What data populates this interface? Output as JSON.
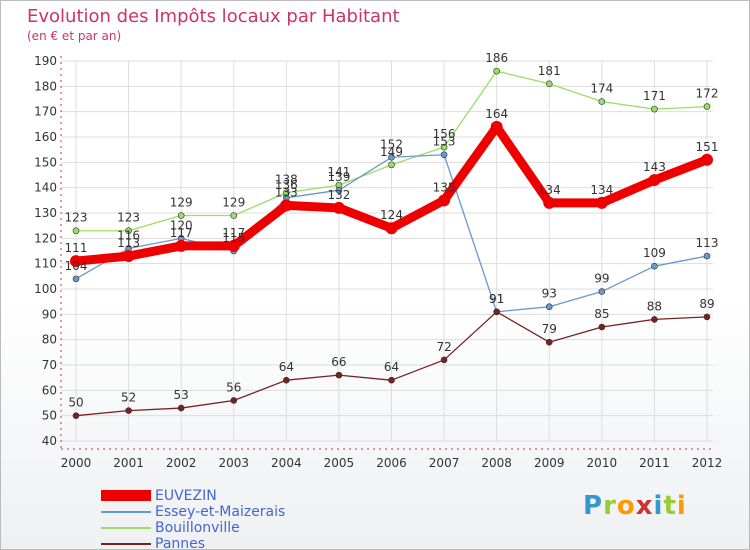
{
  "header": {
    "title": "Evolution des Impôts locaux par Habitant",
    "subtitle": "(en € et par an)"
  },
  "colors": {
    "title": "#cc3366",
    "legend_text": "#4466cc",
    "axis": "#cc3333",
    "grid": "#dddddd"
  },
  "chart_data": {
    "type": "line",
    "title": "Evolution des Impôts locaux par Habitant",
    "subtitle": "(en € et par an)",
    "xlabel": "",
    "ylabel": "",
    "x": [
      "2000",
      "2001",
      "2002",
      "2003",
      "2004",
      "2005",
      "2006",
      "2007",
      "2008",
      "2009",
      "2010",
      "2011",
      "2012"
    ],
    "ylim": [
      40,
      190
    ],
    "yticks": [
      40,
      50,
      60,
      70,
      80,
      90,
      100,
      110,
      120,
      130,
      140,
      150,
      160,
      170,
      180,
      190
    ],
    "grid": true,
    "legend_position": "bottom-left",
    "series": [
      {
        "name": "EUVEZIN",
        "color": "#ee0000",
        "values": [
          111,
          113,
          117,
          117,
          133,
          132,
          124,
          135,
          164,
          134,
          134,
          143,
          151
        ]
      },
      {
        "name": "Essey-et-Maizerais",
        "color": "#6699cc",
        "values": [
          104,
          116,
          120,
          115,
          136,
          139,
          152,
          153,
          91,
          93,
          99,
          109,
          113
        ]
      },
      {
        "name": "Bouillonville",
        "color": "#99dd66",
        "values": [
          123,
          123,
          129,
          129,
          138,
          141,
          149,
          156,
          186,
          181,
          174,
          171,
          172
        ]
      },
      {
        "name": "Pannes",
        "color": "#772222",
        "values": [
          50,
          52,
          53,
          56,
          64,
          66,
          64,
          72,
          91,
          79,
          85,
          88,
          89
        ]
      }
    ]
  },
  "logo": {
    "letters": [
      "P",
      "r",
      "o",
      "x",
      "i",
      "t",
      "i"
    ],
    "colors": [
      "#3399cc",
      "#99cc33",
      "#ff9900",
      "#cc3333",
      "#3399cc",
      "#99cc33",
      "#ff9900"
    ]
  }
}
